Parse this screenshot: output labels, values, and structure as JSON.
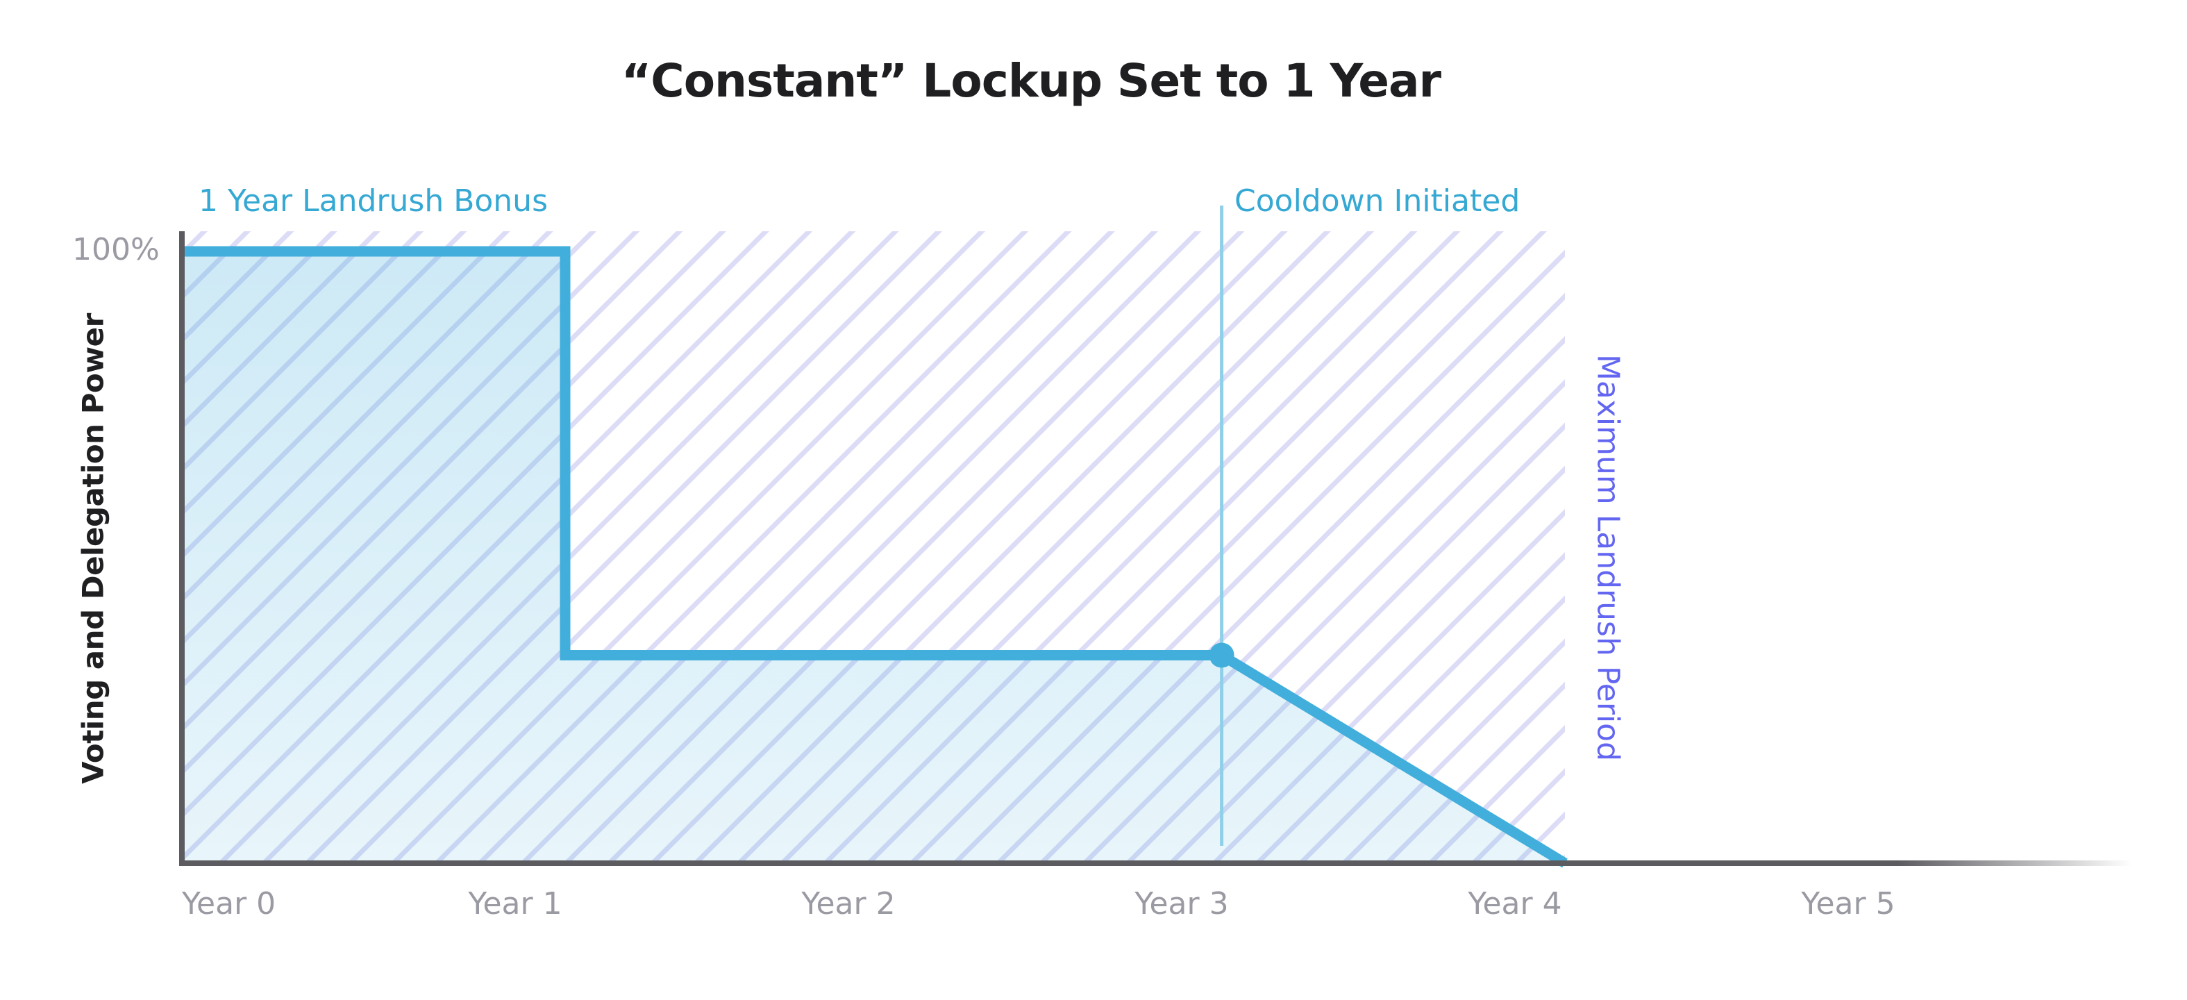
{
  "chart_data": {
    "type": "area",
    "title": "“Constant” Lockup Set to 1 Year",
    "xlabel": "",
    "ylabel": "Voting and Delegation Power",
    "categories": [
      "Year 0",
      "Year 1",
      "Year 2",
      "Year 3",
      "Year 4",
      "Year 5"
    ],
    "xlim": [
      0,
      5.85
    ],
    "ylim": [
      0,
      100
    ],
    "yticks": [
      "100%"
    ],
    "grid": false,
    "legend": "none",
    "series": [
      {
        "points": [
          {
            "x": 0,
            "y": 100
          },
          {
            "x": 1.15,
            "y": 100
          },
          {
            "x": 1.15,
            "y": 34
          },
          {
            "x": 3.12,
            "y": 34
          },
          {
            "x": 4.15,
            "y": 0
          }
        ],
        "color": "#41aedc"
      }
    ],
    "markers": [
      {
        "x": 3.12,
        "y": 34
      }
    ],
    "shaded_region": {
      "x_start": 0,
      "x_end": 4.15,
      "pattern": "diagonal-hatch",
      "color": "#dcdcf6"
    },
    "vertical_line": {
      "x": 3.12,
      "color": "#8fd0e8"
    },
    "annotations": {
      "landrush_bonus": "1 Year Landrush Bonus",
      "cooldown": "Cooldown Initiated",
      "max_period": "Maximum Landrush Period"
    }
  },
  "colors": {
    "line": "#41aedc",
    "axis": "#5b5b60",
    "tick_text": "#9a9aa3",
    "annotation_blue": "#35a8d3",
    "annotation_purple": "#6366f1",
    "hatch": "#dcdcf6",
    "title": "#1f1f22"
  }
}
